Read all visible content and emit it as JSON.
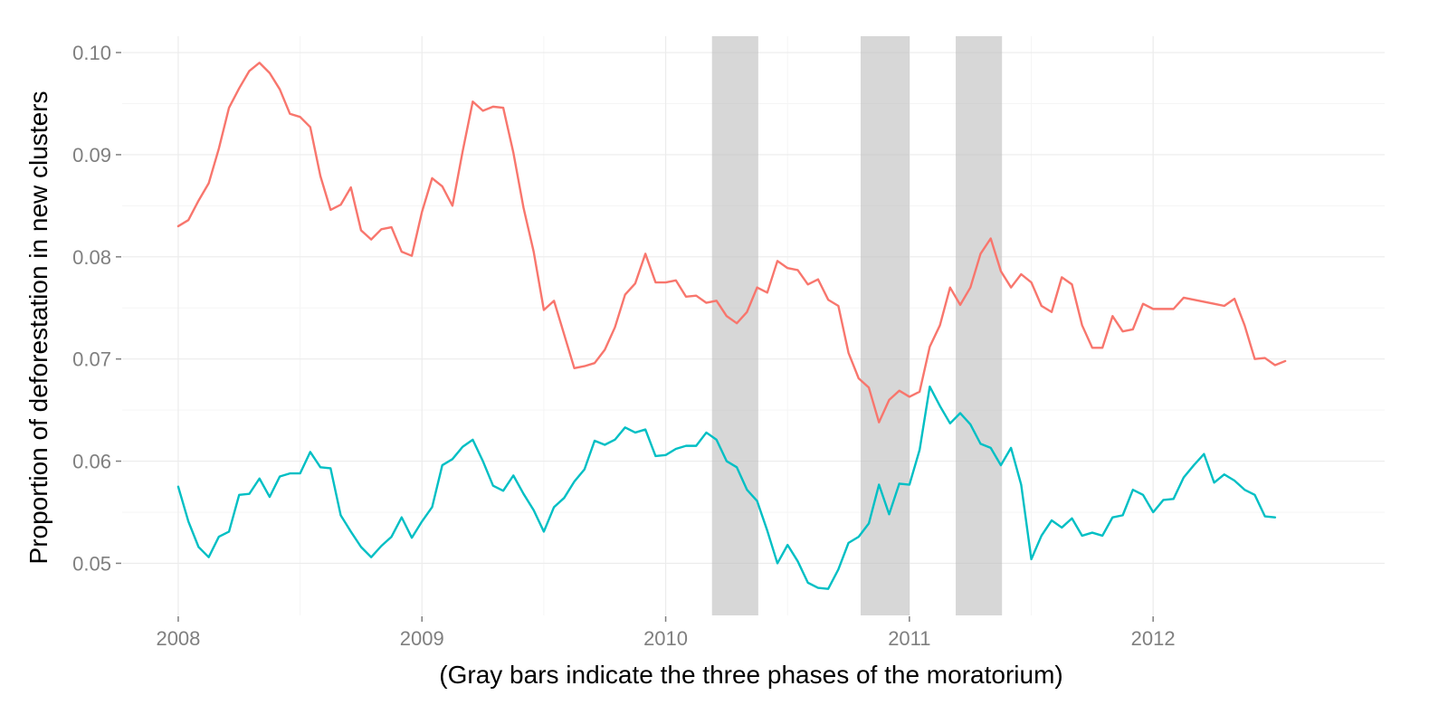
{
  "chart_data": {
    "type": "line",
    "title": "",
    "xlabel": "(Gray bars indicate the three phases of the moratorium)",
    "ylabel": "Proportion of deforestation in new clusters",
    "xlim": [
      2007.77,
      2012.95
    ],
    "ylim": [
      0.0449,
      0.1016
    ],
    "x_ticks": [
      2008,
      2009,
      2010,
      2011,
      2012
    ],
    "x_tick_labels": [
      "2008",
      "2009",
      "2010",
      "2011",
      "2012"
    ],
    "y_ticks": [
      0.05,
      0.06,
      0.07,
      0.08,
      0.09,
      0.1
    ],
    "y_tick_labels": [
      "0.05",
      "0.06",
      "0.07",
      "0.08",
      "0.09",
      "0.10"
    ],
    "grid": true,
    "legend": "none",
    "shaded_periods": [
      {
        "start": 2010.19,
        "end": 2010.38
      },
      {
        "start": 2010.8,
        "end": 2011.0
      },
      {
        "start": 2011.19,
        "end": 2011.38
      }
    ],
    "x_start": 2008,
    "x_step": 0.04167,
    "series": [
      {
        "color": "#f8766d",
        "values": [
          0.083,
          0.0836,
          0.0855,
          0.0872,
          0.0906,
          0.0946,
          0.0965,
          0.0982,
          0.099,
          0.098,
          0.0964,
          0.094,
          0.0937,
          0.0927,
          0.0879,
          0.0846,
          0.0851,
          0.0868,
          0.0826,
          0.0817,
          0.0827,
          0.0829,
          0.0805,
          0.0801,
          0.0844,
          0.0877,
          0.0869,
          0.085,
          0.0903,
          0.0952,
          0.0943,
          0.0947,
          0.0946,
          0.0902,
          0.0848,
          0.0805,
          0.0748,
          0.0757,
          0.0724,
          0.0691,
          0.0693,
          0.0696,
          0.0709,
          0.0731,
          0.0763,
          0.0774,
          0.0803,
          0.0775,
          0.0775,
          0.0777,
          0.0761,
          0.0762,
          0.0755,
          0.0757,
          0.0742,
          0.0735,
          0.0746,
          0.077,
          0.0765,
          0.0796,
          0.0789,
          0.0787,
          0.0773,
          0.0778,
          0.0758,
          0.0752,
          0.0706,
          0.0681,
          0.0672,
          0.0638,
          0.066,
          0.0669,
          0.0663,
          0.0668,
          0.0712,
          0.0733,
          0.077,
          0.0753,
          0.077,
          0.0803,
          0.0818,
          0.0786,
          0.077,
          0.0783,
          0.0775,
          0.0752,
          0.0746,
          0.078,
          0.0773,
          0.0733,
          0.0711,
          0.0711,
          0.0742,
          0.0727,
          0.0729,
          0.0754,
          0.0749,
          0.0749,
          0.0749,
          0.076,
          0.0758,
          0.0756,
          0.0754,
          0.0752,
          0.0759,
          0.0733,
          0.07,
          0.0701,
          0.0694,
          0.0698
        ]
      },
      {
        "color": "#00bfc4",
        "values": [
          0.0575,
          0.0541,
          0.0516,
          0.0506,
          0.0526,
          0.0531,
          0.0567,
          0.0568,
          0.0583,
          0.0565,
          0.0585,
          0.0588,
          0.0588,
          0.0609,
          0.0594,
          0.0593,
          0.0547,
          0.0531,
          0.0516,
          0.0506,
          0.0517,
          0.0526,
          0.0545,
          0.0525,
          0.0541,
          0.0555,
          0.0596,
          0.0602,
          0.0614,
          0.0621,
          0.06,
          0.0576,
          0.0571,
          0.0586,
          0.0568,
          0.0552,
          0.0531,
          0.0555,
          0.0564,
          0.058,
          0.0592,
          0.062,
          0.0616,
          0.0621,
          0.0633,
          0.0628,
          0.0631,
          0.0605,
          0.0606,
          0.0612,
          0.0615,
          0.0615,
          0.0628,
          0.0621,
          0.06,
          0.0594,
          0.0572,
          0.0561,
          0.0532,
          0.05,
          0.0518,
          0.0502,
          0.0481,
          0.0476,
          0.0475,
          0.0494,
          0.052,
          0.0526,
          0.0539,
          0.0577,
          0.0548,
          0.0578,
          0.0577,
          0.0611,
          0.0673,
          0.0654,
          0.0637,
          0.0647,
          0.0636,
          0.0617,
          0.0613,
          0.0596,
          0.0613,
          0.0577,
          0.0504,
          0.0527,
          0.0542,
          0.0535,
          0.0544,
          0.0527,
          0.053,
          0.0527,
          0.0545,
          0.0547,
          0.0572,
          0.0567,
          0.055,
          0.0562,
          0.0563,
          0.0584,
          0.0596,
          0.0607,
          0.0579,
          0.0587,
          0.0581,
          0.0572,
          0.0567,
          0.0546,
          0.0545
        ]
      }
    ]
  }
}
